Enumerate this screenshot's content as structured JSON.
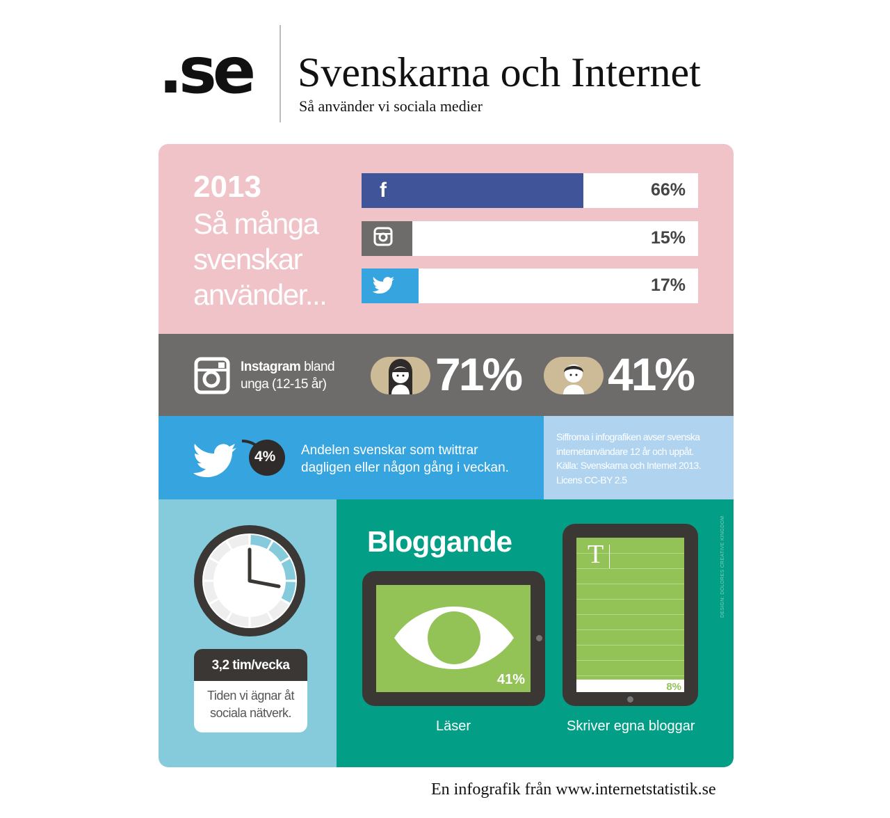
{
  "header": {
    "logo": ".se",
    "title": "Svenskarna och Internet",
    "subtitle": "Så använder vi sociala medier"
  },
  "usage": {
    "year": "2013",
    "intro_lines": [
      "Så många",
      "svenskar",
      "använder..."
    ],
    "bars": [
      {
        "service": "Facebook",
        "icon": "facebook-icon",
        "value": 66,
        "label": "66%",
        "color": "#3f5499"
      },
      {
        "service": "Instagram",
        "icon": "instagram-icon",
        "value": 15,
        "label": "15%",
        "color": "#6e6c6b"
      },
      {
        "service": "Twitter",
        "icon": "twitter-icon",
        "value": 17,
        "label": "17%",
        "color": "#36a5df"
      }
    ]
  },
  "instagram_youth": {
    "label_bold": "Instagram",
    "label_rest": "bland",
    "label_line2": "unga (12-15 år)",
    "girls": "71%",
    "boys": "41%"
  },
  "twitter": {
    "badge": "4%",
    "text_line1": "Andelen svenskar som twittrar",
    "text_line2": "dagligen eller någon gång i veckan."
  },
  "note": {
    "lines": [
      "Siffrorna i infografiken avser svenska",
      "internetanvändare 12 år och uppåt.",
      "Källa: Svenskarna och Internet 2013.",
      "Licens CC-BY 2.5"
    ]
  },
  "time": {
    "value": "3,2 tim/vecka",
    "desc_line1": "Tiden vi ägnar åt",
    "desc_line2": "sociala nätverk."
  },
  "blogging": {
    "title": "Bloggande",
    "read_pct": "41%",
    "read_label": "Läser",
    "write_pct": "8%",
    "write_label": "Skriver egna bloggar",
    "cursor_letter": "T"
  },
  "credit": "DESIGN: DOLORES CREATIVE KINGDOM",
  "footer": "En infografik från www.internetstatistik.se",
  "colors": {
    "pink": "#efc3c8",
    "gray": "#6e6c6b",
    "blue": "#36a5df",
    "light_blue": "#b0d4f0",
    "teal": "#86cbdc",
    "green": "#029e85",
    "screen_green": "#93c257",
    "dark": "#3b3735",
    "face_bg": "#cdbb98"
  }
}
